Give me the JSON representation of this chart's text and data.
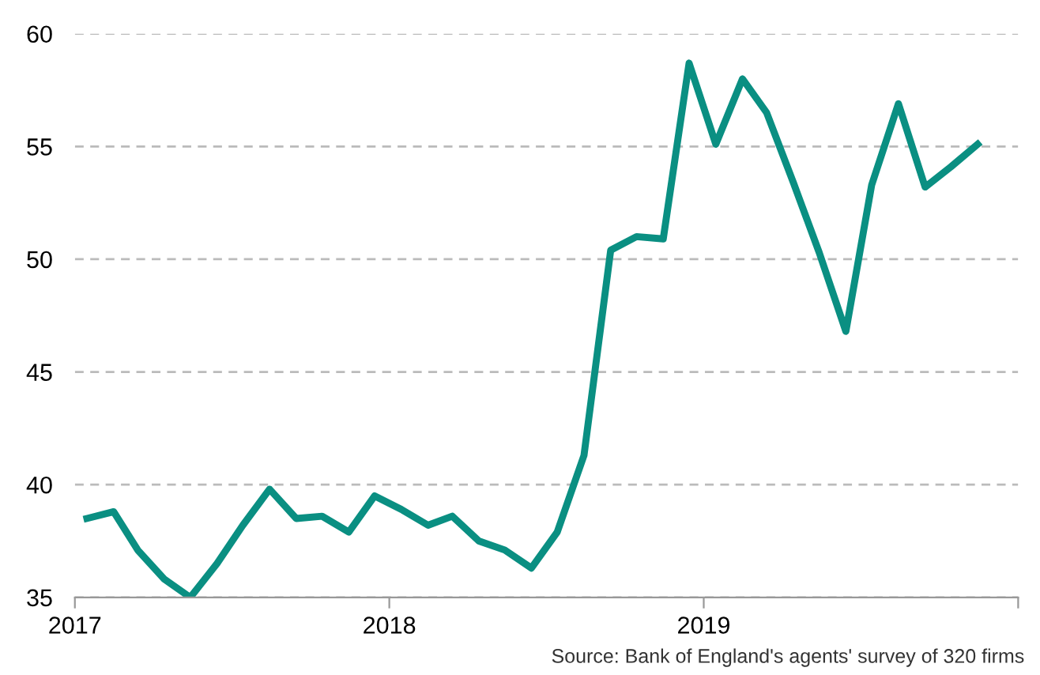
{
  "chart_data": {
    "type": "line",
    "x": [
      "2017-01-15",
      "2017-02-15",
      "2017-03-15",
      "2017-04-15",
      "2017-05-15",
      "2017-06-15",
      "2017-07-15",
      "2017-08-15",
      "2017-09-15",
      "2017-10-15",
      "2017-11-15",
      "2017-12-15",
      "2018-01-15",
      "2018-02-15",
      "2018-03-15",
      "2018-04-15",
      "2018-05-15",
      "2018-06-15",
      "2018-07-15",
      "2018-08-15",
      "2018-09-15",
      "2018-10-15",
      "2018-11-15",
      "2018-12-15",
      "2019-01-15",
      "2019-02-15",
      "2019-03-15",
      "2019-04-15",
      "2019-05-15",
      "2019-06-15",
      "2019-07-15",
      "2019-08-15",
      "2019-09-15",
      "2019-10-15",
      "2019-11-15"
    ],
    "series": [
      {
        "color": "#0a8f82",
        "values": [
          38.5,
          38.8,
          37.1,
          35.8,
          35.0,
          36.5,
          38.2,
          39.8,
          38.5,
          38.6,
          37.9,
          39.5,
          38.9,
          38.2,
          38.6,
          37.5,
          37.1,
          36.3,
          37.9,
          41.3,
          50.4,
          51.0,
          50.9,
          58.7,
          55.1,
          58.0,
          56.5,
          53.4,
          50.3,
          46.8,
          53.3,
          56.9,
          53.2,
          54.1,
          55.1
        ]
      }
    ],
    "xlim": [
      "2017-01-01",
      "2020-01-01"
    ],
    "xticks": [
      {
        "value": "2017-01-01",
        "label": "2017"
      },
      {
        "value": "2018-01-01",
        "label": "2018"
      },
      {
        "value": "2019-01-01",
        "label": "2019"
      },
      {
        "value": "2020-01-01",
        "label": null
      }
    ],
    "ylim": [
      35,
      60
    ],
    "yticks": [
      35,
      40,
      45,
      50,
      55,
      60
    ],
    "grid": "y",
    "line_style": "solid",
    "marker": "none",
    "annotations": [
      "Source: Bank of England's agents' survey of 320 firms"
    ]
  }
}
